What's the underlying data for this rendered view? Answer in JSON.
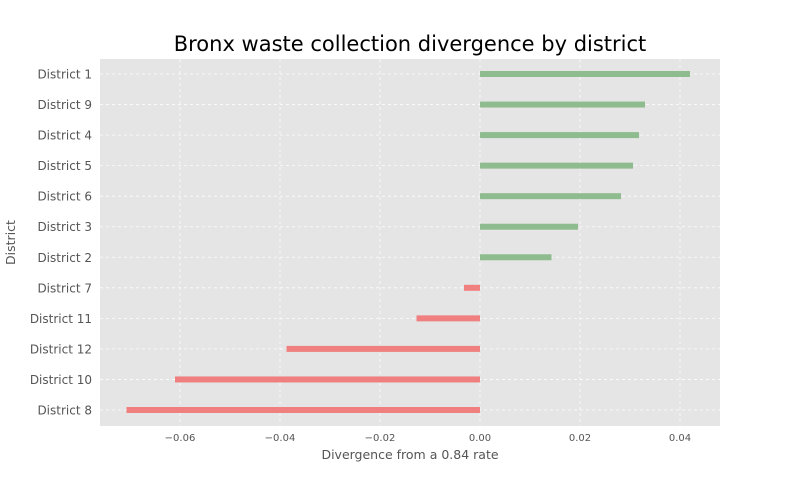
{
  "chart_data": {
    "type": "bar",
    "orientation": "horizontal",
    "title": "Bronx waste collection divergence by district",
    "xlabel": "Divergence from a 0.84 rate",
    "ylabel": "District",
    "xlim": [
      -0.076,
      0.048
    ],
    "xticks": [
      -0.06,
      -0.04,
      -0.02,
      0.0,
      0.02,
      0.04
    ],
    "xtick_labels": [
      "−0.06",
      "−0.04",
      "−0.02",
      "0.00",
      "0.02",
      "0.04"
    ],
    "grid": true,
    "categories": [
      "District 1",
      "District 9",
      "District 4",
      "District 5",
      "District 6",
      "District 3",
      "District 2",
      "District 7",
      "District 11",
      "District 12",
      "District 10",
      "District 8"
    ],
    "values": [
      0.042,
      0.033,
      0.0318,
      0.0306,
      0.0282,
      0.0196,
      0.0143,
      -0.0032,
      -0.0127,
      -0.0387,
      -0.061,
      -0.0707
    ],
    "colors": {
      "positive": "#8fbc8f",
      "negative": "#f08080",
      "plot_background": "#e5e5e5",
      "grid": "#ffffff"
    }
  }
}
